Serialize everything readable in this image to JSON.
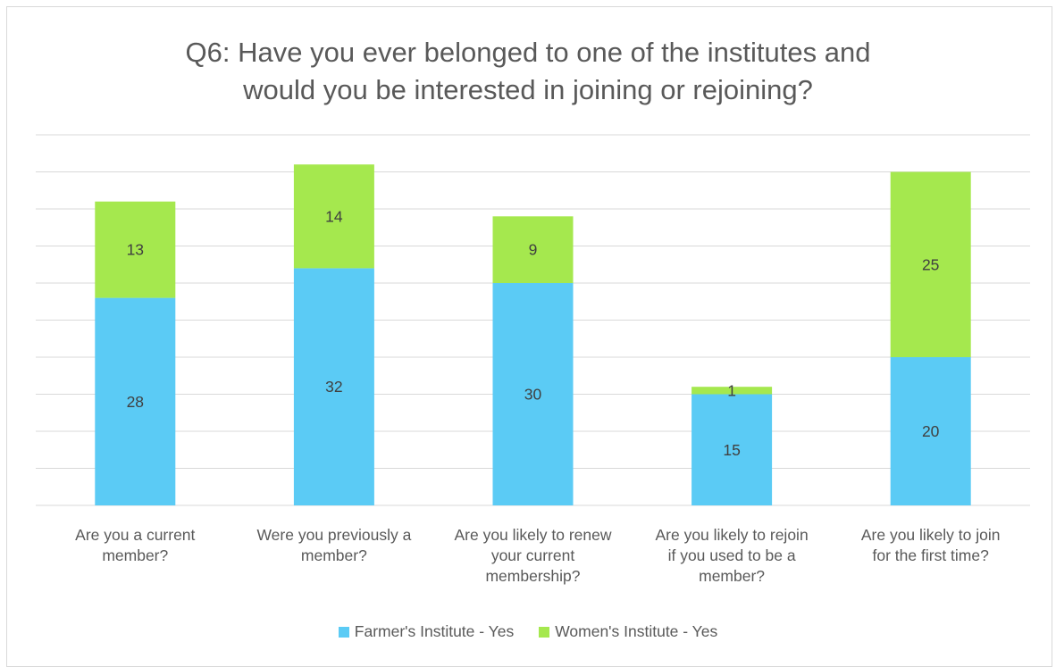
{
  "chart_data": {
    "type": "bar",
    "stacked": true,
    "title_lines": [
      "Q6: Have you ever belonged to one of the institutes and",
      "would you be interested in joining or rejoining?"
    ],
    "categories": [
      "Are you a current member?",
      "Were you previously a member?",
      "Are you likely to renew your current membership?",
      "Are you likely to rejoin if you used to be a member?",
      "Are you likely to join for the first time?"
    ],
    "category_lines": [
      [
        "Are you a current",
        "member?"
      ],
      [
        "Were you previously a",
        "member?"
      ],
      [
        "Are you likely to renew",
        "your current",
        "membership?"
      ],
      [
        "Are you likely to rejoin",
        "if you used to be a",
        "member?"
      ],
      [
        "Are you likely to join",
        "for the first time?"
      ]
    ],
    "series": [
      {
        "name": "Farmer's Institute - Yes",
        "color": "#5bcbf5",
        "values": [
          28,
          32,
          30,
          15,
          20
        ]
      },
      {
        "name": "Women's Institute - Yes",
        "color": "#a5e84e",
        "values": [
          13,
          14,
          9,
          1,
          25
        ]
      }
    ],
    "ylim": [
      0,
      50
    ],
    "ytick_step": 5,
    "yaxis_labels_visible": false,
    "grid": true,
    "legend_position": "bottom",
    "data_labels": true
  }
}
